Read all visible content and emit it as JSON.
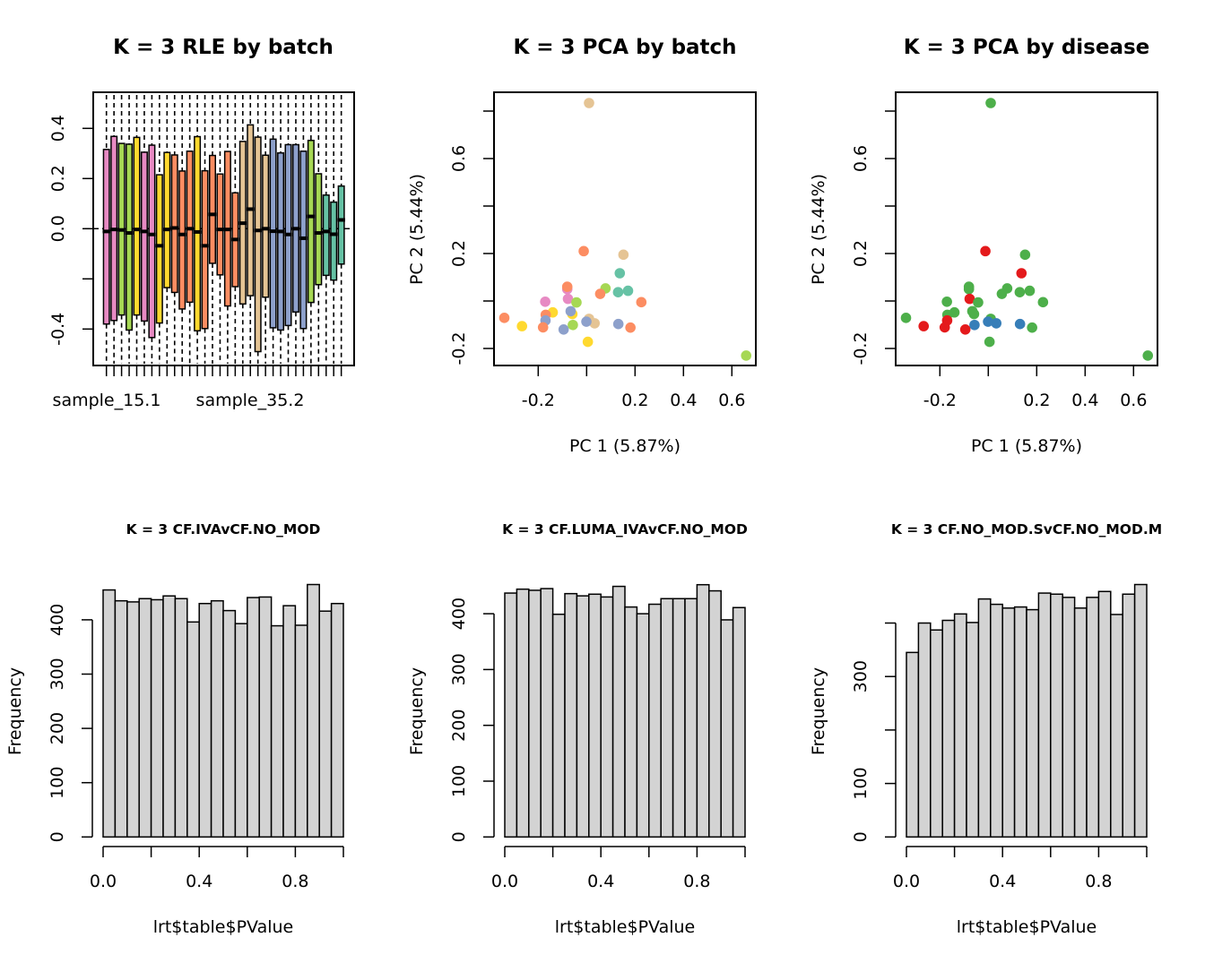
{
  "chart_data": [
    {
      "type": "box",
      "panel": "rle",
      "title": "K = 3 RLE by batch",
      "xlabel": "",
      "ylabel": "",
      "ylim": [
        -0.54,
        0.54
      ],
      "yticks": [
        -0.4,
        -0.2,
        0.0,
        0.2,
        0.4
      ],
      "ytick_labels": [
        "-0.4",
        "",
        "0.0",
        "0.2",
        "0.4"
      ],
      "x_tick_labels_shown": [
        "sample_15.1",
        "sample_35.2"
      ],
      "reference_line": 0,
      "boxes": [
        {
          "batch": "pink",
          "upper": 0.316,
          "median": -0.011,
          "lower": -0.38
        },
        {
          "batch": "pink",
          "upper": 0.368,
          "median": -0.003,
          "lower": -0.366
        },
        {
          "batch": "green",
          "upper": 0.34,
          "median": -0.005,
          "lower": -0.344
        },
        {
          "batch": "green",
          "upper": 0.337,
          "median": -0.017,
          "lower": -0.404
        },
        {
          "batch": "yellow",
          "upper": 0.364,
          "median": -0.003,
          "lower": -0.344
        },
        {
          "batch": "pink",
          "upper": 0.305,
          "median": -0.011,
          "lower": -0.368
        },
        {
          "batch": "pink",
          "upper": 0.333,
          "median": -0.023,
          "lower": -0.434
        },
        {
          "batch": "yellow",
          "upper": 0.215,
          "median": -0.068,
          "lower": -0.376
        },
        {
          "batch": "yellow",
          "upper": 0.304,
          "median": -0.003,
          "lower": -0.235
        },
        {
          "batch": "orange",
          "upper": 0.294,
          "median": 0.003,
          "lower": -0.254
        },
        {
          "batch": "orange",
          "upper": 0.23,
          "median": -0.023,
          "lower": -0.32
        },
        {
          "batch": "orange",
          "upper": 0.309,
          "median": 0.0,
          "lower": -0.293
        },
        {
          "batch": "yellow",
          "upper": 0.367,
          "median": -0.013,
          "lower": -0.407
        },
        {
          "batch": "orange",
          "upper": 0.231,
          "median": -0.068,
          "lower": -0.398
        },
        {
          "batch": "orange",
          "upper": 0.292,
          "median": 0.057,
          "lower": -0.138
        },
        {
          "batch": "orange",
          "upper": 0.218,
          "median": -0.003,
          "lower": -0.184
        },
        {
          "batch": "orange",
          "upper": 0.308,
          "median": -0.003,
          "lower": -0.308
        },
        {
          "batch": "orange",
          "upper": 0.143,
          "median": -0.043,
          "lower": -0.231
        },
        {
          "batch": "tan",
          "upper": 0.348,
          "median": 0.022,
          "lower": -0.3
        },
        {
          "batch": "tan",
          "upper": 0.414,
          "median": 0.078,
          "lower": -0.267
        },
        {
          "batch": "tan",
          "upper": 0.365,
          "median": -0.007,
          "lower": -0.49
        },
        {
          "batch": "tan",
          "upper": 0.293,
          "median": 0.0,
          "lower": -0.273
        },
        {
          "batch": "blue",
          "upper": 0.357,
          "median": -0.01,
          "lower": -0.395
        },
        {
          "batch": "blue",
          "upper": 0.302,
          "median": -0.011,
          "lower": -0.404
        },
        {
          "batch": "blue",
          "upper": 0.335,
          "median": -0.023,
          "lower": -0.386
        },
        {
          "batch": "blue",
          "upper": 0.335,
          "median": 0.0,
          "lower": -0.332
        },
        {
          "batch": "blue",
          "upper": 0.309,
          "median": -0.038,
          "lower": -0.398
        },
        {
          "batch": "green",
          "upper": 0.352,
          "median": 0.049,
          "lower": -0.294
        },
        {
          "batch": "green",
          "upper": 0.219,
          "median": -0.017,
          "lower": -0.223
        },
        {
          "batch": "teal",
          "upper": 0.134,
          "median": -0.011,
          "lower": -0.186
        },
        {
          "batch": "teal",
          "upper": 0.106,
          "median": -0.022,
          "lower": -0.205
        },
        {
          "batch": "teal",
          "upper": 0.17,
          "median": 0.035,
          "lower": -0.141
        }
      ]
    },
    {
      "type": "scatter",
      "panel": "pca-batch",
      "title": "K = 3 PCA by batch",
      "xlabel": "PC 1 (5.87%)",
      "ylabel": "PC 2 (5.44%)",
      "xlim": [
        -0.38,
        0.7
      ],
      "ylim": [
        -0.27,
        0.88
      ],
      "xticks": [
        -0.2,
        0.0,
        0.2,
        0.4,
        0.6
      ],
      "xtick_labels": [
        "-0.2",
        "",
        "0.2",
        "0.4",
        "0.6"
      ],
      "yticks": [
        -0.2,
        0.0,
        0.2,
        0.4,
        0.6,
        0.8
      ],
      "ytick_labels": [
        "-0.2",
        "",
        "0.2",
        "",
        "0.6",
        ""
      ],
      "color_by": "batch",
      "points": [
        {
          "x": 0.01,
          "y": 0.834,
          "group": "tan"
        },
        {
          "x": 0.659,
          "y": -0.23,
          "group": "green"
        },
        {
          "x": -0.012,
          "y": 0.21,
          "group": "orange"
        },
        {
          "x": 0.152,
          "y": 0.195,
          "group": "tan"
        },
        {
          "x": 0.137,
          "y": 0.117,
          "group": "teal"
        },
        {
          "x": -0.08,
          "y": 0.05,
          "group": "pink"
        },
        {
          "x": -0.08,
          "y": 0.06,
          "group": "orange"
        },
        {
          "x": 0.078,
          "y": 0.053,
          "group": "green"
        },
        {
          "x": 0.056,
          "y": 0.03,
          "group": "orange"
        },
        {
          "x": 0.13,
          "y": 0.037,
          "group": "teal"
        },
        {
          "x": 0.171,
          "y": 0.043,
          "group": "teal"
        },
        {
          "x": -0.077,
          "y": 0.009,
          "group": "pink"
        },
        {
          "x": -0.171,
          "y": -0.003,
          "group": "pink"
        },
        {
          "x": -0.042,
          "y": -0.006,
          "group": "green"
        },
        {
          "x": 0.226,
          "y": -0.005,
          "group": "orange"
        },
        {
          "x": -0.34,
          "y": -0.071,
          "group": "orange"
        },
        {
          "x": -0.14,
          "y": -0.048,
          "group": "yellow"
        },
        {
          "x": -0.169,
          "y": -0.058,
          "group": "orange"
        },
        {
          "x": -0.059,
          "y": -0.055,
          "group": "yellow"
        },
        {
          "x": -0.066,
          "y": -0.043,
          "group": "blue"
        },
        {
          "x": -0.17,
          "y": -0.082,
          "group": "blue"
        },
        {
          "x": 0.01,
          "y": -0.075,
          "group": "tan"
        },
        {
          "x": 0.033,
          "y": -0.094,
          "group": "tan"
        },
        {
          "x": -0.001,
          "y": -0.087,
          "group": "blue"
        },
        {
          "x": 0.131,
          "y": -0.097,
          "group": "blue"
        },
        {
          "x": -0.267,
          "y": -0.106,
          "group": "yellow"
        },
        {
          "x": -0.18,
          "y": -0.111,
          "group": "orange"
        },
        {
          "x": -0.057,
          "y": -0.101,
          "group": "green"
        },
        {
          "x": -0.095,
          "y": -0.12,
          "group": "blue"
        },
        {
          "x": 0.181,
          "y": -0.112,
          "group": "orange"
        },
        {
          "x": 0.005,
          "y": -0.172,
          "group": "yellow"
        }
      ]
    },
    {
      "type": "scatter",
      "panel": "pca-disease",
      "title": "K = 3 PCA by disease",
      "xlabel": "PC 1 (5.87%)",
      "ylabel": "PC 2 (5.44%)",
      "xlim": [
        -0.38,
        0.7
      ],
      "ylim": [
        -0.27,
        0.88
      ],
      "xticks": [
        -0.2,
        0.0,
        0.2,
        0.4,
        0.6
      ],
      "xtick_labels": [
        "-0.2",
        "",
        "0.2",
        "0.4",
        "0.6"
      ],
      "yticks": [
        -0.2,
        0.0,
        0.2,
        0.4,
        0.6,
        0.8
      ],
      "ytick_labels": [
        "-0.2",
        "",
        "0.2",
        "",
        "0.6",
        ""
      ],
      "color_by": "disease",
      "points": [
        {
          "x": 0.01,
          "y": 0.834,
          "group": "green"
        },
        {
          "x": 0.659,
          "y": -0.23,
          "group": "green"
        },
        {
          "x": -0.012,
          "y": 0.21,
          "group": "red"
        },
        {
          "x": 0.152,
          "y": 0.195,
          "group": "green"
        },
        {
          "x": 0.137,
          "y": 0.117,
          "group": "red"
        },
        {
          "x": -0.08,
          "y": 0.05,
          "group": "green"
        },
        {
          "x": -0.08,
          "y": 0.06,
          "group": "green"
        },
        {
          "x": 0.078,
          "y": 0.053,
          "group": "green"
        },
        {
          "x": 0.056,
          "y": 0.03,
          "group": "green"
        },
        {
          "x": 0.13,
          "y": 0.037,
          "group": "green"
        },
        {
          "x": 0.171,
          "y": 0.043,
          "group": "green"
        },
        {
          "x": -0.077,
          "y": 0.009,
          "group": "red"
        },
        {
          "x": -0.171,
          "y": -0.003,
          "group": "green"
        },
        {
          "x": -0.042,
          "y": -0.006,
          "group": "green"
        },
        {
          "x": 0.226,
          "y": -0.005,
          "group": "green"
        },
        {
          "x": -0.34,
          "y": -0.071,
          "group": "green"
        },
        {
          "x": -0.14,
          "y": -0.048,
          "group": "green"
        },
        {
          "x": -0.169,
          "y": -0.058,
          "group": "green"
        },
        {
          "x": -0.059,
          "y": -0.055,
          "group": "green"
        },
        {
          "x": -0.066,
          "y": -0.043,
          "group": "green"
        },
        {
          "x": -0.17,
          "y": -0.082,
          "group": "red"
        },
        {
          "x": 0.01,
          "y": -0.075,
          "group": "green"
        },
        {
          "x": 0.033,
          "y": -0.094,
          "group": "blue"
        },
        {
          "x": -0.001,
          "y": -0.087,
          "group": "blue"
        },
        {
          "x": 0.131,
          "y": -0.097,
          "group": "blue"
        },
        {
          "x": -0.267,
          "y": -0.106,
          "group": "red"
        },
        {
          "x": -0.18,
          "y": -0.111,
          "group": "red"
        },
        {
          "x": -0.057,
          "y": -0.101,
          "group": "blue"
        },
        {
          "x": -0.095,
          "y": -0.12,
          "group": "red"
        },
        {
          "x": 0.181,
          "y": -0.112,
          "group": "green"
        },
        {
          "x": 0.005,
          "y": -0.172,
          "group": "green"
        }
      ]
    },
    {
      "type": "bar",
      "panel": "hist-1",
      "title": "K = 3 CF.IVAvCF.NO_MOD",
      "xlabel": "lrt$table$PValue",
      "ylabel": "Frequency",
      "xlim": [
        0,
        1
      ],
      "xticks": [
        0,
        0.2,
        0.4,
        0.6,
        0.8,
        1.0
      ],
      "xtick_labels": [
        "0.0",
        "",
        "0.4",
        "",
        "0.8",
        ""
      ],
      "yticks": [
        0,
        100,
        200,
        300,
        400
      ],
      "ytick_labels": [
        "0",
        "100",
        "200",
        "300",
        "400"
      ],
      "ylim": [
        0,
        475
      ],
      "bin_width": 0.05,
      "values": [
        455,
        435,
        433,
        439,
        437,
        444,
        439,
        396,
        430,
        435,
        417,
        393,
        441,
        442,
        389,
        426,
        390,
        465,
        416,
        430
      ]
    },
    {
      "type": "bar",
      "panel": "hist-2",
      "title": "K = 3 CF.LUMA_IVAvCF.NO_MOD",
      "xlabel": "lrt$table$PValue",
      "ylabel": "Frequency",
      "xlim": [
        0,
        1
      ],
      "xticks": [
        0,
        0.2,
        0.4,
        0.6,
        0.8,
        1.0
      ],
      "xtick_labels": [
        "0.0",
        "",
        "0.4",
        "",
        "0.8",
        ""
      ],
      "yticks": [
        0,
        100,
        200,
        300,
        400
      ],
      "ytick_labels": [
        "0",
        "100",
        "200",
        "300",
        "400"
      ],
      "ylim": [
        0,
        460
      ],
      "bin_width": 0.05,
      "values": [
        437,
        444,
        442,
        445,
        399,
        436,
        432,
        435,
        430,
        449,
        412,
        400,
        417,
        427,
        427,
        427,
        452,
        441,
        389,
        411
      ]
    },
    {
      "type": "bar",
      "panel": "hist-3",
      "title": "K = 3 CF.NO_MOD.SvCF.NO_MOD.M",
      "xlabel": "lrt$table$PValue",
      "ylabel": "Frequency",
      "xlim": [
        0,
        1
      ],
      "xticks": [
        0,
        0.2,
        0.4,
        0.6,
        0.8,
        1.0
      ],
      "xtick_labels": [
        "0.0",
        "",
        "0.4",
        "",
        "0.8",
        ""
      ],
      "yticks": [
        0,
        100,
        200,
        300,
        400
      ],
      "ytick_labels": [
        "0",
        "100",
        "",
        "300",
        ""
      ],
      "ylim": [
        0,
        480
      ],
      "bin_width": 0.05,
      "values": [
        345,
        400,
        387,
        405,
        417,
        401,
        445,
        435,
        428,
        430,
        425,
        456,
        454,
        448,
        428,
        448,
        459,
        416,
        454,
        472
      ]
    }
  ],
  "palettes": {
    "batch": {
      "pink": "#E78AC3",
      "green": "#A6D854",
      "yellow": "#FFD92F",
      "orange": "#FC8D62",
      "tan": "#E5C494",
      "blue": "#8DA0CB",
      "teal": "#66C2A5"
    },
    "disease": {
      "red": "#E41A1C",
      "blue": "#377EB8",
      "green": "#4DAF4A"
    },
    "hist_fill": "#D3D3D3"
  }
}
